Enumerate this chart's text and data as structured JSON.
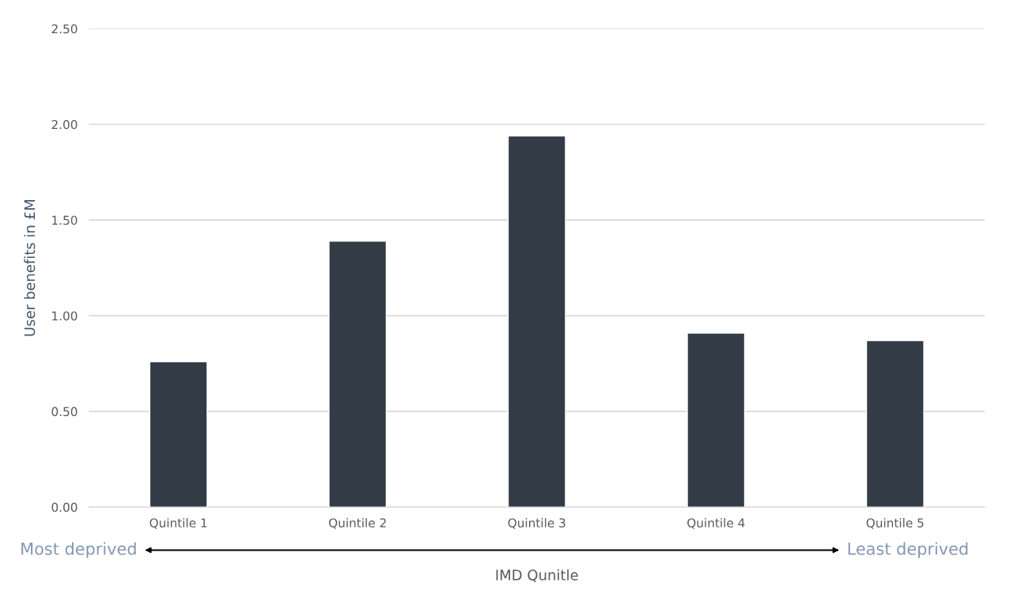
{
  "chart_data": {
    "type": "bar",
    "xlabel": "IMD Qunitle",
    "ylabel": "User benefits in £M",
    "categories": [
      "Quintile 1",
      "Quintile 2",
      "Quintile 3",
      "Quintile 4",
      "Quintile 5"
    ],
    "values": [
      0.76,
      1.39,
      1.94,
      0.91,
      0.87
    ],
    "color": "#333c46",
    "ylim": [
      0,
      2.5
    ],
    "yticks": [
      {
        "value": 0,
        "label": "0.00"
      },
      {
        "value": 0.5,
        "label": "0.50"
      },
      {
        "value": 1,
        "label": "1.00"
      },
      {
        "value": 1.5,
        "label": "1.50"
      },
      {
        "value": 2,
        "label": "2.00"
      },
      {
        "value": 2.5,
        "label": "2.50"
      }
    ],
    "grid": "y",
    "annotations": [
      "Most deprived",
      "Least deprived"
    ]
  }
}
